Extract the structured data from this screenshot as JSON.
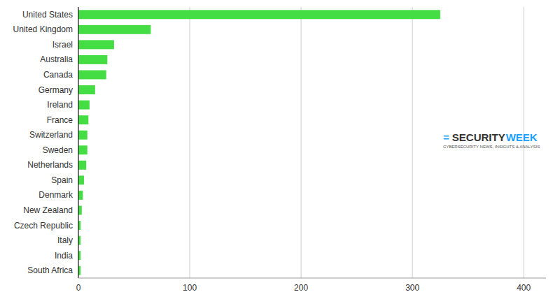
{
  "chart_data": {
    "type": "bar",
    "orientation": "horizontal",
    "categories": [
      "United States",
      "United Kingdom",
      "Israel",
      "Australia",
      "Canada",
      "Germany",
      "Ireland",
      "France",
      "Switzerland",
      "Sweden",
      "Netherlands",
      "Spain",
      "Denmark",
      "New Zealand",
      "Czech Republic",
      "Italy",
      "India",
      "South Africa"
    ],
    "values": [
      325,
      65,
      32,
      26,
      25,
      15,
      10,
      9,
      8,
      8,
      7,
      5,
      4,
      3,
      2,
      2,
      2,
      2
    ],
    "color": "#44dd44",
    "xlim": [
      0,
      420
    ],
    "xticks": [
      0,
      100,
      200,
      300,
      400
    ],
    "grid": true,
    "annotations": [
      {
        "text": "=",
        "color": "#1a9eff"
      },
      {
        "text": "SECURITY",
        "color": "#333333"
      },
      {
        "text": "WEEK",
        "color": "#1a9eff"
      },
      {
        "text": "CYBERSECURITY NEWS, INSIGHTS & ANALYSIS",
        "color": "#555555"
      }
    ]
  }
}
